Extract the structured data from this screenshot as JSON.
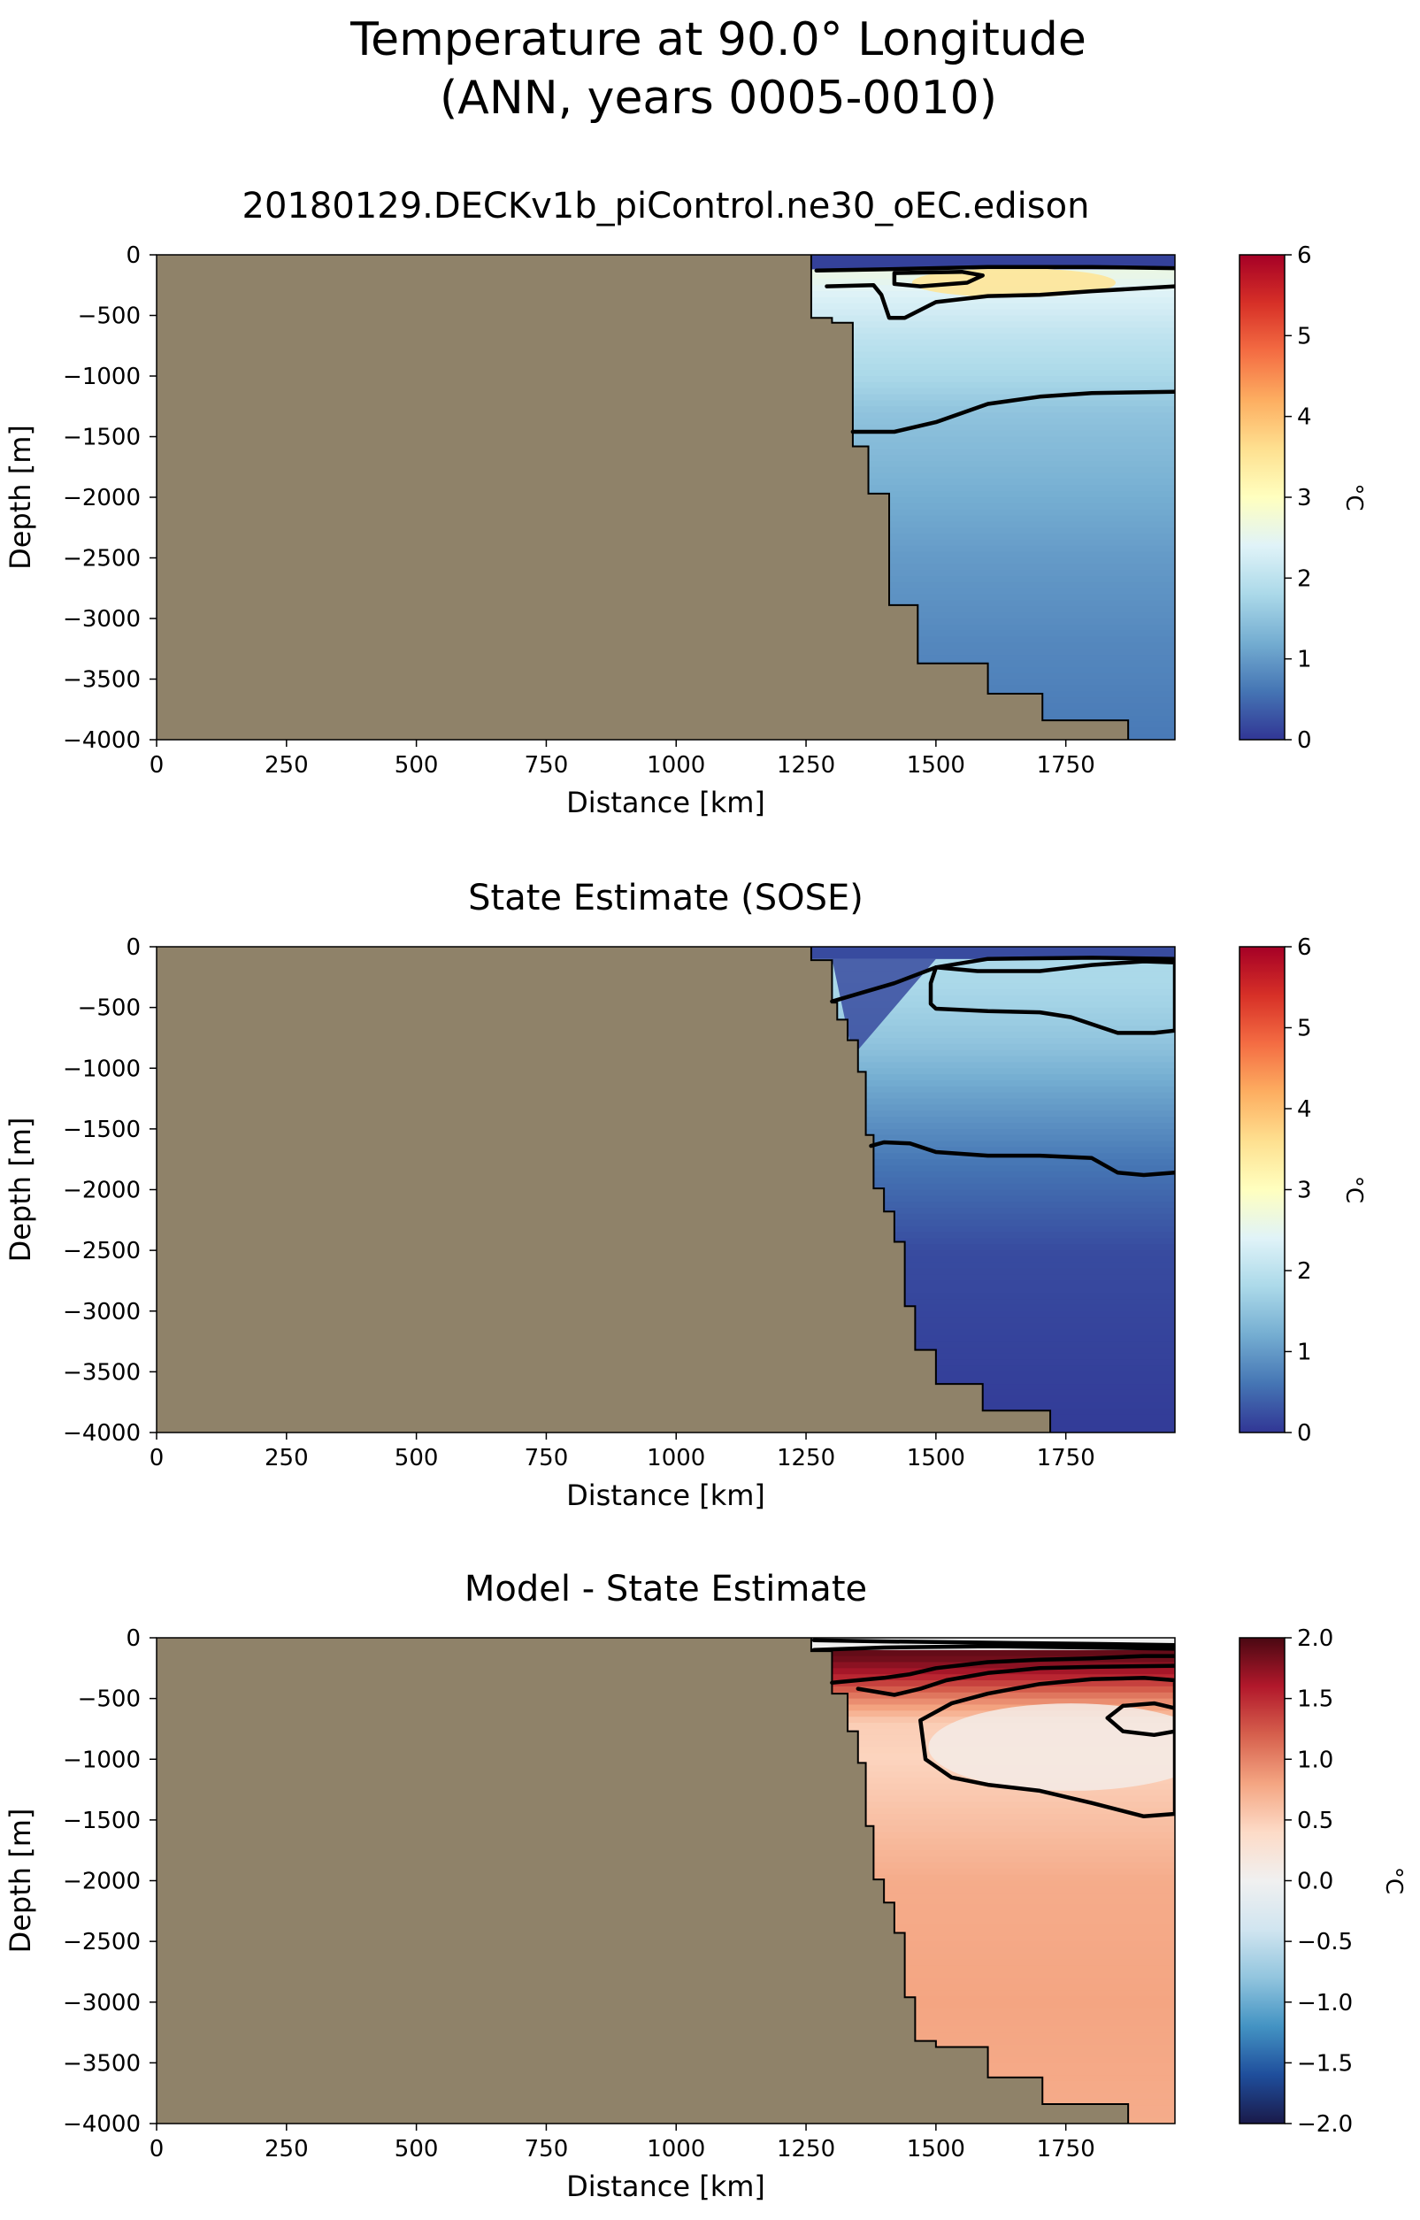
{
  "figure": {
    "title_line1": "Temperature at 90.0° Longitude",
    "title_line2": "(ANN, years 0005-0010)"
  },
  "colors": {
    "land": "#8f8269",
    "contour": "#000000",
    "temp_colormap": [
      "#313695",
      "#4575b4",
      "#74add1",
      "#abd9e9",
      "#e0f3f8",
      "#ffffbf",
      "#fee090",
      "#fdae61",
      "#f46d43",
      "#d73027",
      "#a50026"
    ],
    "diff_colormap": [
      "#1a1a4a",
      "#1f4e9c",
      "#4393c3",
      "#92c5de",
      "#d1e5f0",
      "#f0f0f0",
      "#fddbc7",
      "#f4a582",
      "#d6604d",
      "#b2182b",
      "#4a0812"
    ]
  },
  "chart_data": [
    {
      "type": "heatmap",
      "title": "20180129.DECKv1b_piControl.ne30_oEC.edison",
      "xlabel": "Distance [km]",
      "ylabel": "Depth [m]",
      "xlim": [
        0,
        1960
      ],
      "ylim": [
        -4000,
        0
      ],
      "xticks": [
        "0",
        "250",
        "500",
        "750",
        "1000",
        "1250",
        "1500",
        "1750"
      ],
      "yticks": [
        "0",
        "−500",
        "−1000",
        "−1500",
        "−2000",
        "−2500",
        "−3000",
        "−3500",
        "−4000"
      ],
      "colorbar": {
        "label": "°C",
        "min": 0,
        "max": 6,
        "ticks": [
          "0",
          "1",
          "2",
          "3",
          "4",
          "5",
          "6"
        ]
      },
      "bathymetry": [
        [
          1260,
          0
        ],
        [
          1260,
          -520
        ],
        [
          1300,
          -520
        ],
        [
          1300,
          -560
        ],
        [
          1340,
          -560
        ],
        [
          1340,
          -1580
        ],
        [
          1370,
          -1580
        ],
        [
          1370,
          -1970
        ],
        [
          1410,
          -1970
        ],
        [
          1410,
          -2890
        ],
        [
          1465,
          -2890
        ],
        [
          1465,
          -3370
        ],
        [
          1600,
          -3370
        ],
        [
          1600,
          -3620
        ],
        [
          1705,
          -3620
        ],
        [
          1705,
          -3840
        ],
        [
          1870,
          -3840
        ],
        [
          1870,
          -4000
        ]
      ],
      "field": {
        "surface_layer": {
          "value": 0.1,
          "bottom_depth": -120
        },
        "water_profile": [
          [
            -150,
            2.6
          ],
          [
            -300,
            2.4
          ],
          [
            -500,
            2.2
          ],
          [
            -700,
            2.0
          ],
          [
            -1000,
            1.8
          ],
          [
            -1300,
            1.5
          ],
          [
            -1800,
            1.3
          ],
          [
            -2500,
            1.0
          ],
          [
            -3200,
            0.8
          ],
          [
            -4000,
            0.65
          ]
        ],
        "warm_core": {
          "x": 1650,
          "depth": -230,
          "value": 3.5
        }
      },
      "contours": [
        [
          [
            1270,
            -130
          ],
          [
            1400,
            -120
          ],
          [
            1600,
            -100
          ],
          [
            1800,
            -100
          ],
          [
            1960,
            -110
          ]
        ],
        [
          [
            1420,
            -150
          ],
          [
            1550,
            -140
          ],
          [
            1590,
            -170
          ],
          [
            1560,
            -230
          ],
          [
            1470,
            -260
          ],
          [
            1420,
            -240
          ],
          [
            1420,
            -150
          ]
        ],
        [
          [
            1290,
            -260
          ],
          [
            1380,
            -250
          ],
          [
            1395,
            -330
          ],
          [
            1410,
            -520
          ],
          [
            1440,
            -520
          ],
          [
            1500,
            -390
          ],
          [
            1600,
            -340
          ],
          [
            1700,
            -330
          ],
          [
            1800,
            -300
          ],
          [
            1960,
            -260
          ]
        ],
        [
          [
            1340,
            -1460
          ],
          [
            1420,
            -1460
          ],
          [
            1500,
            -1380
          ],
          [
            1600,
            -1230
          ],
          [
            1700,
            -1170
          ],
          [
            1800,
            -1140
          ],
          [
            1960,
            -1130
          ]
        ]
      ]
    },
    {
      "type": "heatmap",
      "title": "State Estimate (SOSE)",
      "xlabel": "Distance [km]",
      "ylabel": "Depth [m]",
      "xlim": [
        0,
        1960
      ],
      "ylim": [
        -4000,
        0
      ],
      "xticks": [
        "0",
        "250",
        "500",
        "750",
        "1000",
        "1250",
        "1500",
        "1750"
      ],
      "yticks": [
        "0",
        "−500",
        "−1000",
        "−1500",
        "−2000",
        "−2500",
        "−3000",
        "−3500",
        "−4000"
      ],
      "colorbar": {
        "label": "°C",
        "min": 0,
        "max": 6,
        "ticks": [
          "0",
          "1",
          "2",
          "3",
          "4",
          "5",
          "6"
        ]
      },
      "bathymetry": [
        [
          1260,
          0
        ],
        [
          1260,
          -110
        ],
        [
          1300,
          -110
        ],
        [
          1300,
          -460
        ],
        [
          1310,
          -460
        ],
        [
          1310,
          -600
        ],
        [
          1330,
          -600
        ],
        [
          1330,
          -770
        ],
        [
          1350,
          -770
        ],
        [
          1350,
          -1030
        ],
        [
          1365,
          -1030
        ],
        [
          1365,
          -1550
        ],
        [
          1380,
          -1550
        ],
        [
          1380,
          -1990
        ],
        [
          1400,
          -1990
        ],
        [
          1400,
          -2180
        ],
        [
          1420,
          -2180
        ],
        [
          1420,
          -2430
        ],
        [
          1440,
          -2430
        ],
        [
          1440,
          -2960
        ],
        [
          1460,
          -2960
        ],
        [
          1460,
          -3320
        ],
        [
          1500,
          -3320
        ],
        [
          1500,
          -3600
        ],
        [
          1590,
          -3600
        ],
        [
          1590,
          -3820
        ],
        [
          1720,
          -3820
        ],
        [
          1720,
          -4000
        ]
      ],
      "field": {
        "surface_layer": {
          "value": 0.2,
          "bottom_depth": -100
        },
        "water_profile": [
          [
            -150,
            1.8
          ],
          [
            -300,
            1.8
          ],
          [
            -500,
            1.7
          ],
          [
            -800,
            1.5
          ],
          [
            -1200,
            1.1
          ],
          [
            -1800,
            0.6
          ],
          [
            -2500,
            0.2
          ],
          [
            -4000,
            0.05
          ]
        ],
        "cold_wedge": {
          "x_from": 1300,
          "x_to": 1500,
          "depth_to": -900,
          "value": 0.2
        }
      },
      "contours": [
        [
          [
            1300,
            -450
          ],
          [
            1420,
            -300
          ],
          [
            1500,
            -170
          ],
          [
            1600,
            -100
          ],
          [
            1800,
            -90
          ],
          [
            1960,
            -100
          ]
        ],
        [
          [
            1500,
            -170
          ],
          [
            1580,
            -200
          ],
          [
            1700,
            -200
          ],
          [
            1800,
            -150
          ],
          [
            1900,
            -120
          ],
          [
            1960,
            -130
          ],
          [
            1960,
            -690
          ],
          [
            1920,
            -710
          ],
          [
            1850,
            -710
          ],
          [
            1760,
            -580
          ],
          [
            1700,
            -540
          ],
          [
            1600,
            -530
          ],
          [
            1500,
            -510
          ],
          [
            1490,
            -470
          ],
          [
            1490,
            -300
          ],
          [
            1500,
            -170
          ]
        ],
        [
          [
            1375,
            -1640
          ],
          [
            1400,
            -1610
          ],
          [
            1450,
            -1620
          ],
          [
            1500,
            -1690
          ],
          [
            1600,
            -1720
          ],
          [
            1700,
            -1720
          ],
          [
            1800,
            -1740
          ],
          [
            1850,
            -1860
          ],
          [
            1900,
            -1880
          ],
          [
            1960,
            -1860
          ]
        ]
      ]
    },
    {
      "type": "heatmap",
      "title": "Model - State Estimate",
      "xlabel": "Distance [km]",
      "ylabel": "Depth [m]",
      "xlim": [
        0,
        1960
      ],
      "ylim": [
        -4000,
        0
      ],
      "xticks": [
        "0",
        "250",
        "500",
        "750",
        "1000",
        "1250",
        "1500",
        "1750"
      ],
      "yticks": [
        "0",
        "−500",
        "−1000",
        "−1500",
        "−2000",
        "−2500",
        "−3000",
        "−3500",
        "−4000"
      ],
      "colorbar": {
        "label": "°C",
        "min": -2,
        "max": 2,
        "ticks": [
          "−2.0",
          "−1.5",
          "−1.0",
          "−0.5",
          "0.0",
          "0.5",
          "1.0",
          "1.5",
          "2.0"
        ]
      },
      "bathymetry": [
        [
          1260,
          0
        ],
        [
          1260,
          -110
        ],
        [
          1300,
          -110
        ],
        [
          1300,
          -460
        ],
        [
          1330,
          -460
        ],
        [
          1330,
          -770
        ],
        [
          1350,
          -770
        ],
        [
          1350,
          -1030
        ],
        [
          1365,
          -1030
        ],
        [
          1365,
          -1550
        ],
        [
          1380,
          -1550
        ],
        [
          1380,
          -1990
        ],
        [
          1400,
          -1990
        ],
        [
          1400,
          -2180
        ],
        [
          1420,
          -2180
        ],
        [
          1420,
          -2430
        ],
        [
          1440,
          -2430
        ],
        [
          1440,
          -2960
        ],
        [
          1460,
          -2960
        ],
        [
          1460,
          -3320
        ],
        [
          1500,
          -3320
        ],
        [
          1500,
          -3370
        ],
        [
          1600,
          -3370
        ],
        [
          1600,
          -3620
        ],
        [
          1705,
          -3620
        ],
        [
          1705,
          -3840
        ],
        [
          1870,
          -3840
        ],
        [
          1870,
          -4000
        ]
      ],
      "field": {
        "surface_layer": {
          "value": 0.0,
          "bottom_depth": -100
        },
        "water_profile": [
          [
            -150,
            1.9
          ],
          [
            -300,
            1.6
          ],
          [
            -500,
            1.0
          ],
          [
            -700,
            0.5
          ],
          [
            -1000,
            0.45
          ],
          [
            -1500,
            0.6
          ],
          [
            -2000,
            0.75
          ],
          [
            -3000,
            0.8
          ],
          [
            -4000,
            0.75
          ]
        ],
        "low_core": {
          "x": 1760,
          "depth": -900,
          "value": 0.1
        }
      },
      "contours": [
        [
          [
            1265,
            -20
          ],
          [
            1400,
            -30
          ],
          [
            1600,
            -40
          ],
          [
            1800,
            -50
          ],
          [
            1960,
            -60
          ]
        ],
        [
          [
            1265,
            -100
          ],
          [
            1400,
            -80
          ],
          [
            1600,
            -70
          ],
          [
            1800,
            -80
          ],
          [
            1960,
            -90
          ]
        ],
        [
          [
            1300,
            -370
          ],
          [
            1400,
            -330
          ],
          [
            1450,
            -300
          ],
          [
            1500,
            -250
          ],
          [
            1600,
            -200
          ],
          [
            1700,
            -180
          ],
          [
            1800,
            -170
          ],
          [
            1900,
            -150
          ],
          [
            1960,
            -150
          ]
        ],
        [
          [
            1350,
            -420
          ],
          [
            1420,
            -470
          ],
          [
            1470,
            -420
          ],
          [
            1520,
            -350
          ],
          [
            1600,
            -290
          ],
          [
            1700,
            -250
          ],
          [
            1800,
            -240
          ],
          [
            1960,
            -230
          ]
        ],
        [
          [
            1470,
            -680
          ],
          [
            1530,
            -540
          ],
          [
            1600,
            -460
          ],
          [
            1700,
            -380
          ],
          [
            1800,
            -340
          ],
          [
            1900,
            -330
          ],
          [
            1960,
            -350
          ],
          [
            1960,
            -1450
          ],
          [
            1900,
            -1470
          ],
          [
            1800,
            -1360
          ],
          [
            1700,
            -1260
          ],
          [
            1600,
            -1210
          ],
          [
            1530,
            -1150
          ],
          [
            1480,
            -1000
          ],
          [
            1470,
            -680
          ]
        ],
        [
          [
            1830,
            -660
          ],
          [
            1860,
            -560
          ],
          [
            1920,
            -540
          ],
          [
            1960,
            -580
          ],
          [
            1960,
            -770
          ],
          [
            1920,
            -800
          ],
          [
            1860,
            -770
          ],
          [
            1830,
            -660
          ]
        ]
      ]
    }
  ]
}
